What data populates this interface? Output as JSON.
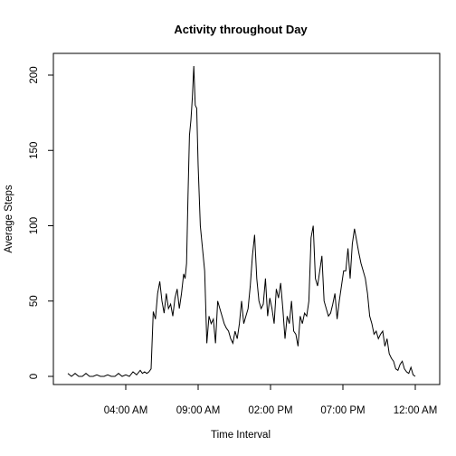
{
  "chart_data": {
    "type": "line",
    "title": "Activity throughout Day",
    "xlabel": "Time Interval",
    "ylabel": "Average Steps",
    "x_unit": "hours",
    "xlim": [
      0,
      24
    ],
    "ylim": [
      0,
      206
    ],
    "x_ticks": [
      {
        "value": 4,
        "label": "04:00 AM"
      },
      {
        "value": 9,
        "label": "09:00 AM"
      },
      {
        "value": 14,
        "label": "02:00 PM"
      },
      {
        "value": 19,
        "label": "07:00 PM"
      },
      {
        "value": 24,
        "label": "12:00 AM"
      }
    ],
    "y_ticks": [
      {
        "value": 0,
        "label": "0"
      },
      {
        "value": 50,
        "label": "50"
      },
      {
        "value": 100,
        "label": "100"
      },
      {
        "value": 150,
        "label": "150"
      },
      {
        "value": 200,
        "label": "200"
      }
    ],
    "grid": false,
    "series": [
      {
        "color": "#000000",
        "x": [
          0,
          0.25,
          0.5,
          0.75,
          1,
          1.25,
          1.5,
          1.75,
          2,
          2.25,
          2.5,
          2.75,
          3,
          3.25,
          3.5,
          3.75,
          4,
          4.25,
          4.5,
          4.75,
          5,
          5.15,
          5.3,
          5.45,
          5.6,
          5.75,
          5.9,
          6.05,
          6.2,
          6.35,
          6.5,
          6.65,
          6.8,
          6.95,
          7.1,
          7.25,
          7.4,
          7.55,
          7.7,
          7.85,
          8,
          8.1,
          8.2,
          8.3,
          8.4,
          8.5,
          8.6,
          8.7,
          8.8,
          8.9,
          9,
          9.15,
          9.3,
          9.45,
          9.6,
          9.75,
          9.9,
          10.05,
          10.2,
          10.35,
          10.5,
          10.65,
          10.8,
          10.95,
          11.1,
          11.25,
          11.4,
          11.55,
          11.7,
          11.85,
          12,
          12.15,
          12.3,
          12.45,
          12.6,
          12.75,
          12.9,
          13.05,
          13.2,
          13.35,
          13.5,
          13.65,
          13.8,
          13.95,
          14.1,
          14.25,
          14.4,
          14.55,
          14.7,
          14.85,
          15,
          15.15,
          15.3,
          15.45,
          15.6,
          15.75,
          15.9,
          16.05,
          16.2,
          16.35,
          16.5,
          16.65,
          16.8,
          16.95,
          17.1,
          17.25,
          17.4,
          17.55,
          17.7,
          17.85,
          18,
          18.15,
          18.3,
          18.45,
          18.6,
          18.75,
          18.9,
          19.05,
          19.2,
          19.35,
          19.5,
          19.65,
          19.8,
          19.95,
          20.1,
          20.25,
          20.4,
          20.55,
          20.7,
          20.85,
          21,
          21.15,
          21.3,
          21.45,
          21.6,
          21.75,
          21.9,
          22.05,
          22.2,
          22.35,
          22.5,
          22.65,
          22.8,
          22.95,
          23.1,
          23.25,
          23.4,
          23.55,
          23.7,
          23.85,
          24
        ],
        "y": [
          2,
          0,
          2,
          0,
          0,
          2,
          0,
          0,
          1,
          0,
          0,
          1,
          0,
          0,
          2,
          0,
          1,
          0,
          3,
          1,
          4,
          2,
          3,
          2,
          3,
          5,
          43,
          38,
          55,
          63,
          50,
          42,
          55,
          45,
          48,
          40,
          52,
          58,
          45,
          55,
          68,
          65,
          75,
          120,
          160,
          170,
          185,
          206,
          180,
          178,
          140,
          100,
          85,
          70,
          22,
          40,
          35,
          38,
          22,
          50,
          45,
          40,
          35,
          32,
          30,
          25,
          22,
          30,
          25,
          35,
          50,
          35,
          40,
          45,
          60,
          80,
          94,
          65,
          50,
          45,
          48,
          65,
          40,
          52,
          45,
          35,
          58,
          52,
          62,
          45,
          25,
          40,
          35,
          50,
          30,
          28,
          20,
          40,
          35,
          42,
          40,
          50,
          92,
          100,
          65,
          60,
          70,
          80,
          50,
          45,
          40,
          42,
          48,
          55,
          38,
          50,
          60,
          70,
          70,
          85,
          65,
          88,
          98,
          90,
          82,
          75,
          70,
          65,
          55,
          40,
          35,
          28,
          30,
          25,
          28,
          30,
          20,
          25,
          15,
          12,
          10,
          5,
          4,
          8,
          10,
          5,
          3,
          2,
          6,
          1,
          0
        ]
      }
    ]
  }
}
